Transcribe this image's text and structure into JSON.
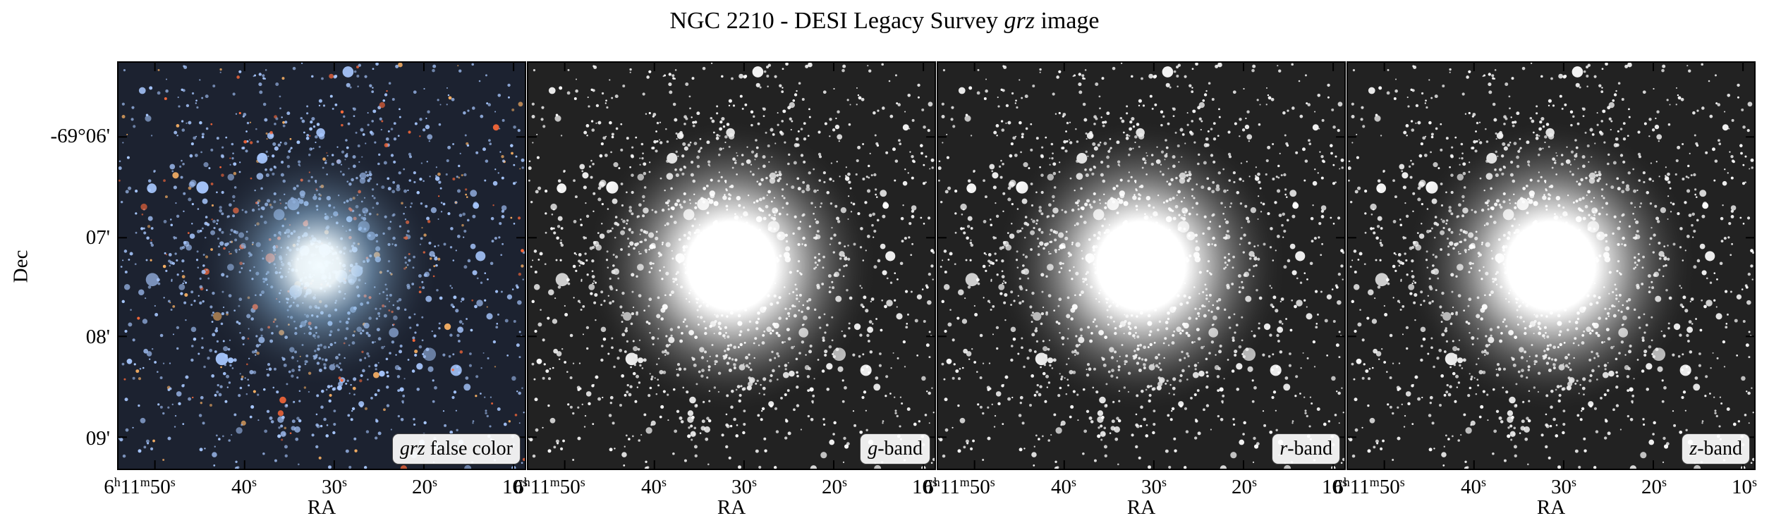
{
  "figure": {
    "title_prefix": "NGC 2210 - DESI Legacy Survey ",
    "title_italic": "grz",
    "title_suffix": " image",
    "ylabel": "Dec",
    "xlabel": "RA"
  },
  "dec_ticks": [
    "-69°06'",
    "07'",
    "08'",
    "09'"
  ],
  "ra_ticks": [
    {
      "h": "6",
      "h_unit": "h",
      "m": "11",
      "m_unit": "m",
      "s": "50",
      "s_unit": "s"
    },
    {
      "s": "40",
      "s_unit": "s"
    },
    {
      "s": "30",
      "s_unit": "s"
    },
    {
      "s": "20",
      "s_unit": "s"
    },
    {
      "s": "10",
      "s_unit": "s"
    }
  ],
  "panels": [
    {
      "id": "grz",
      "badge_italic": "grz",
      "badge_text": " false color",
      "mode": "color"
    },
    {
      "id": "g",
      "badge_italic": "g",
      "badge_text": "-band",
      "mode": "gray"
    },
    {
      "id": "r",
      "badge_italic": "r",
      "badge_text": "-band",
      "mode": "gray"
    },
    {
      "id": "z",
      "badge_italic": "z",
      "badge_text": "-band",
      "mode": "gray"
    }
  ],
  "colors": {
    "color_bg": "#1c2230",
    "color_core": "#f2fbff",
    "color_halo": "#8fb8dc",
    "star_blue": "#a8c8ff",
    "star_red": "#ff6a3a",
    "star_orange": "#ffb566",
    "gray_bg": "#222222",
    "gray_core": "#ffffff"
  }
}
